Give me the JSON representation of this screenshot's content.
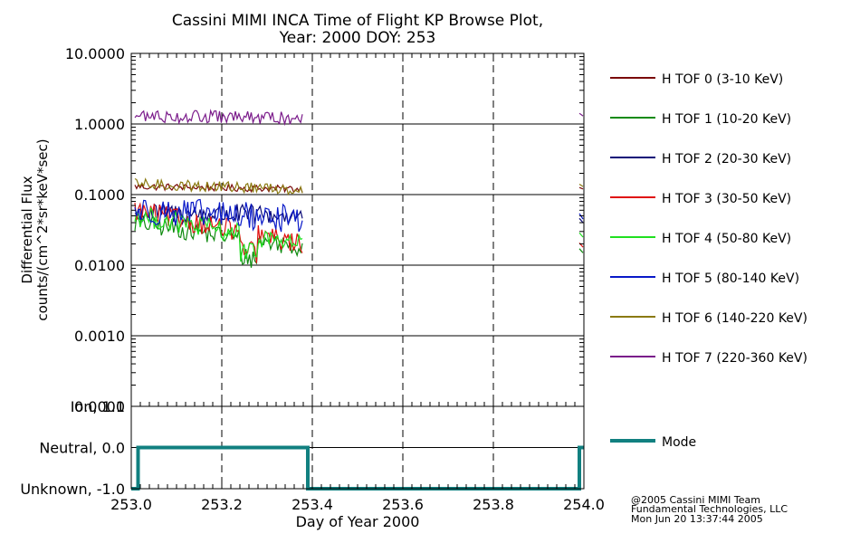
{
  "title": {
    "line1": "Cassini MIMI INCA Time of Flight KP Browse Plot,",
    "line2": "Year: 2000 DOY: 253"
  },
  "copyright": {
    "line1": "@2005 Cassini MIMI Team",
    "line2": "Fundamental Technologies, LLC",
    "line3": "Mon Jun 20 13:37:44 2005"
  },
  "chart_data": [
    {
      "type": "line",
      "yscale": "log",
      "ylabel_line1": "Differential Flux",
      "ylabel_line2": "counts/(cm^2*sr*keV*sec)",
      "ylim": [
        0.0001,
        10
      ],
      "yticks": [
        {
          "value": 10,
          "label": "10.0000"
        },
        {
          "value": 1,
          "label": "1.0000"
        },
        {
          "value": 0.1,
          "label": "0.1000"
        },
        {
          "value": 0.01,
          "label": "0.0100"
        },
        {
          "value": 0.001,
          "label": "0.0010"
        },
        {
          "value": 0.0001,
          "label": "0.0001"
        }
      ],
      "xlim": [
        253.0,
        254.0
      ],
      "grid": {
        "horizontal": "solid at decades",
        "vertical": "dashed every 0.2 day"
      },
      "legend_position": "right",
      "data_gap": [
        253.39,
        253.99
      ],
      "series": [
        {
          "name": "H TOF 0 (3-10 KeV)",
          "color": "#7a0a0a",
          "level_start": 0.13,
          "level_end": 0.12,
          "noise": 0.05,
          "end_value": 0.12
        },
        {
          "name": "H TOF 1 (10-20 KeV)",
          "color": "#0f8a0f",
          "level_start": 0.04,
          "level_end": 0.018,
          "noise": 0.14,
          "end_value": 0.015
        },
        {
          "name": "H TOF 2 (20-30 KeV)",
          "color": "#0a0a78",
          "level_start": 0.055,
          "level_end": 0.05,
          "noise": 0.15,
          "end_value": 0.04
        },
        {
          "name": "H TOF 3 (30-50 KeV)",
          "color": "#e01010",
          "level_start": 0.06,
          "level_end": 0.02,
          "noise": 0.15,
          "end_value": 0.018
        },
        {
          "name": "H TOF 4 (50-80 KeV)",
          "color": "#20e020",
          "level_start": 0.05,
          "level_end": 0.02,
          "noise": 0.15,
          "end_value": 0.025
        },
        {
          "name": "H TOF 5 (80-140 KeV)",
          "color": "#0818c8",
          "level_start": 0.06,
          "level_end": 0.045,
          "noise": 0.2,
          "end_value": 0.045
        },
        {
          "name": "H TOF 6 (140-220 KeV)",
          "color": "#8a7a10",
          "level_start": 0.14,
          "level_end": 0.12,
          "noise": 0.08,
          "end_value": 0.13
        },
        {
          "name": "H TOF 7 (220-360 KeV)",
          "color": "#7a1a8a",
          "level_start": 1.3,
          "level_end": 1.2,
          "noise": 0.09,
          "end_value": 1.3
        }
      ]
    },
    {
      "type": "line",
      "ylim": [
        -1.0,
        1.0
      ],
      "yticks": [
        {
          "value": 1,
          "label": "Ion, 1.0"
        },
        {
          "value": 0,
          "label": "Neutral, 0.0"
        },
        {
          "value": -1,
          "label": "Unknown, -1.0"
        }
      ],
      "xlabel": "Day of Year 2000",
      "xticks": [
        {
          "value": 253.0,
          "label": "253.0"
        },
        {
          "value": 253.2,
          "label": "253.2"
        },
        {
          "value": 253.4,
          "label": "253.4"
        },
        {
          "value": 253.6,
          "label": "253.6"
        },
        {
          "value": 253.8,
          "label": "253.8"
        },
        {
          "value": 254.0,
          "label": "254.0"
        }
      ],
      "xminor_step": 0.02,
      "series": [
        {
          "name": "Mode",
          "color": "#118080",
          "points": [
            [
              253.0,
              -1
            ],
            [
              253.015,
              -1
            ],
            [
              253.015,
              0
            ],
            [
              253.39,
              0
            ],
            [
              253.39,
              -1
            ],
            [
              253.99,
              -1
            ],
            [
              253.99,
              0
            ],
            [
              254.0,
              0
            ]
          ]
        }
      ]
    }
  ]
}
